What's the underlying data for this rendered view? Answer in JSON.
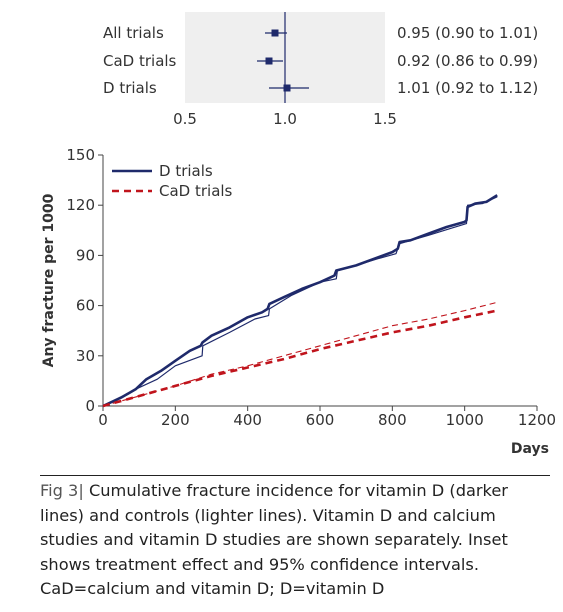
{
  "chart_data": [
    {
      "type": "forest",
      "rows": [
        {
          "label": "All trials",
          "estimate": 0.95,
          "ci": [
            0.9,
            1.01
          ],
          "text": "0.95 (0.90 to 1.01)"
        },
        {
          "label": "CaD trials",
          "estimate": 0.92,
          "ci": [
            0.86,
            0.99
          ],
          "text": "0.92 (0.86 to 0.99)"
        },
        {
          "label": "D trials",
          "estimate": 1.01,
          "ci": [
            0.92,
            1.12
          ],
          "text": "1.01 (0.92 to 1.12)"
        }
      ],
      "xlim": [
        0.5,
        1.5
      ],
      "xticks": [
        "0.5",
        "1.0",
        "1.5"
      ],
      "reference_line": 1.0,
      "background": "#efefef",
      "marker_color": "#1f2a6b"
    },
    {
      "type": "line",
      "ylabel": "Any fracture per 1000",
      "xlabel": "Days",
      "xlim": [
        0,
        1200
      ],
      "ylim": [
        0,
        150
      ],
      "xticks": [
        "0",
        "200",
        "400",
        "600",
        "800",
        "1000",
        "1200"
      ],
      "yticks": [
        "0",
        "30",
        "60",
        "90",
        "120",
        "150"
      ],
      "legend_position": "top-left",
      "series": [
        {
          "name": "D trials",
          "style": "solid",
          "color": "#1f2a6b",
          "legend": true,
          "points": [
            [
              0,
              0
            ],
            [
              50,
              5
            ],
            [
              90,
              10
            ],
            [
              120,
              16
            ],
            [
              160,
              21
            ],
            [
              200,
              27
            ],
            [
              240,
              33
            ],
            [
              270,
              36
            ],
            [
              275,
              38
            ],
            [
              300,
              42
            ],
            [
              350,
              47
            ],
            [
              400,
              53
            ],
            [
              440,
              56
            ],
            [
              455,
              58
            ],
            [
              460,
              61
            ],
            [
              500,
              65
            ],
            [
              550,
              70
            ],
            [
              600,
              74
            ],
            [
              630,
              77
            ],
            [
              640,
              78
            ],
            [
              645,
              81
            ],
            [
              700,
              84
            ],
            [
              750,
              88
            ],
            [
              800,
              92
            ],
            [
              815,
              94
            ],
            [
              820,
              98
            ],
            [
              850,
              99
            ],
            [
              900,
              103
            ],
            [
              950,
              107
            ],
            [
              1000,
              110
            ],
            [
              1005,
              111
            ],
            [
              1008,
              119
            ],
            [
              1030,
              121
            ],
            [
              1060,
              122
            ],
            [
              1090,
              126
            ]
          ]
        },
        {
          "name": "D trials (controls)",
          "style": "solid-thin",
          "color": "#1f2a6b",
          "legend": false,
          "points": [
            [
              0,
              0
            ],
            [
              100,
              11
            ],
            [
              150,
              16
            ],
            [
              200,
              24
            ],
            [
              274,
              30
            ],
            [
              276,
              36
            ],
            [
              350,
              44
            ],
            [
              420,
              52
            ],
            [
              458,
              54
            ],
            [
              460,
              58
            ],
            [
              520,
              66
            ],
            [
              600,
              74
            ],
            [
              645,
              76
            ],
            [
              648,
              81
            ],
            [
              700,
              84
            ],
            [
              760,
              88
            ],
            [
              810,
              91
            ],
            [
              820,
              97
            ],
            [
              900,
              102
            ],
            [
              960,
              106
            ],
            [
              1005,
              109
            ],
            [
              1008,
              120
            ],
            [
              1050,
              121
            ],
            [
              1090,
              125
            ]
          ]
        },
        {
          "name": "CaD trials",
          "style": "dashed",
          "color": "#c0141c",
          "legend": true,
          "points": [
            [
              0,
              0
            ],
            [
              100,
              6
            ],
            [
              200,
              12
            ],
            [
              300,
              18
            ],
            [
              400,
              23
            ],
            [
              500,
              28
            ],
            [
              600,
              34
            ],
            [
              700,
              39
            ],
            [
              800,
              44
            ],
            [
              900,
              48
            ],
            [
              1000,
              53
            ],
            [
              1090,
              57
            ]
          ]
        },
        {
          "name": "CaD trials (controls)",
          "style": "dashed-thin",
          "color": "#c0141c",
          "legend": false,
          "points": [
            [
              0,
              0
            ],
            [
              100,
              6
            ],
            [
              200,
              12
            ],
            [
              300,
              19
            ],
            [
              400,
              24
            ],
            [
              500,
              30
            ],
            [
              600,
              36
            ],
            [
              700,
              42
            ],
            [
              800,
              48
            ],
            [
              900,
              52
            ],
            [
              1000,
              57
            ],
            [
              1090,
              62
            ]
          ]
        }
      ]
    }
  ],
  "caption": {
    "fig_label": "Fig 3",
    "separator": "|",
    "text": "Cumulative fracture incidence for vitamin D (darker lines) and controls (lighter lines). Vitamin D and calcium studies and vitamin D studies are shown separately. Inset shows treatment effect and 95% confidence intervals. CaD=calcium and vitamin D; D=vitamin D"
  }
}
